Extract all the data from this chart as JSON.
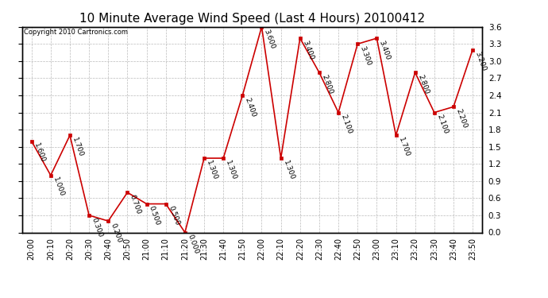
{
  "title": "10 Minute Average Wind Speed (Last 4 Hours) 20100412",
  "copyright_text": "Copyright 2010 Cartronics.com",
  "x_labels": [
    "20:00",
    "20:10",
    "20:20",
    "20:30",
    "20:40",
    "20:50",
    "21:00",
    "21:10",
    "21:20",
    "21:30",
    "21:40",
    "21:50",
    "22:00",
    "22:10",
    "22:20",
    "22:30",
    "22:40",
    "22:50",
    "23:00",
    "23:10",
    "23:20",
    "23:30",
    "23:40",
    "23:50"
  ],
  "y_values": [
    1.6,
    1.0,
    1.7,
    0.3,
    0.2,
    0.7,
    0.5,
    0.5,
    0.0,
    1.3,
    1.3,
    2.4,
    3.6,
    1.3,
    3.4,
    2.8,
    2.1,
    3.3,
    3.4,
    1.7,
    2.8,
    2.1,
    2.2,
    3.2
  ],
  "line_color": "#cc0000",
  "marker_color": "#cc0000",
  "bg_color": "#ffffff",
  "grid_color": "#bbbbbb",
  "title_fontsize": 11,
  "annotation_fontsize": 6.5,
  "ylim": [
    0.0,
    3.6
  ],
  "yticks": [
    0.0,
    0.3,
    0.6,
    0.9,
    1.2,
    1.5,
    1.8,
    2.1,
    2.4,
    2.7,
    3.0,
    3.3,
    3.6
  ]
}
